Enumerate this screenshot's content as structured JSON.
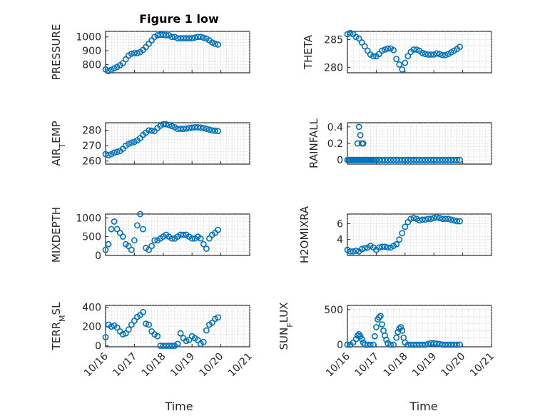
{
  "figure": {
    "title": "Figure 1 low",
    "xlabel": "Time",
    "x_tick_labels": [
      "10/16",
      "10/17",
      "10/18",
      "10/19",
      "10/20",
      "10/21"
    ],
    "marker_color": "#0072bd"
  },
  "chart_data": [
    {
      "type": "scatter",
      "ylabel": "PRESSURE",
      "xlim": [
        0,
        5
      ],
      "ylim": [
        740,
        1040
      ],
      "yticks": [
        800,
        900,
        1000
      ],
      "ytick_labels": [
        "800",
        "900",
        "1000"
      ],
      "grid": true,
      "marker": "circle",
      "x": [
        0.0,
        0.1,
        0.2,
        0.3,
        0.4,
        0.5,
        0.6,
        0.7,
        0.8,
        0.9,
        1.0,
        1.1,
        1.2,
        1.3,
        1.4,
        1.5,
        1.6,
        1.7,
        1.8,
        1.9,
        2.0,
        2.1,
        2.2,
        2.3,
        2.4,
        2.5,
        2.6,
        2.7,
        2.8,
        2.9,
        3.0,
        3.1,
        3.2,
        3.3,
        3.4,
        3.5,
        3.6,
        3.7,
        3.8,
        3.9
      ],
      "y": [
        765,
        752,
        762,
        772,
        782,
        795,
        810,
        838,
        865,
        878,
        882,
        882,
        890,
        906,
        926,
        950,
        975,
        1000,
        1012,
        1015,
        1015,
        1012,
        1012,
        1000,
        1000,
        990,
        990,
        990,
        990,
        990,
        990,
        995,
        1000,
        1000,
        994,
        988,
        975,
        960,
        950,
        945
      ]
    },
    {
      "type": "scatter",
      "ylabel": "THETA",
      "xlim": [
        0,
        5
      ],
      "ylim": [
        279,
        286.5
      ],
      "yticks": [
        280,
        285
      ],
      "ytick_labels": [
        "280",
        "285"
      ],
      "grid": true,
      "marker": "circle",
      "x": [
        0.0,
        0.1,
        0.2,
        0.3,
        0.4,
        0.5,
        0.6,
        0.7,
        0.8,
        0.9,
        1.0,
        1.1,
        1.2,
        1.3,
        1.4,
        1.5,
        1.6,
        1.7,
        1.8,
        1.9,
        2.0,
        2.1,
        2.2,
        2.3,
        2.4,
        2.5,
        2.6,
        2.7,
        2.8,
        2.9,
        3.0,
        3.1,
        3.2,
        3.3,
        3.4,
        3.5,
        3.6,
        3.7,
        3.8,
        3.9
      ],
      "y": [
        286.0,
        286.2,
        286.0,
        285.5,
        285.2,
        284.5,
        283.8,
        283.0,
        282.3,
        282.0,
        282.0,
        282.4,
        283.0,
        283.2,
        283.4,
        283.4,
        283.1,
        281.5,
        280.5,
        279.6,
        280.8,
        282.0,
        282.8,
        283.2,
        283.2,
        283.0,
        282.6,
        282.4,
        282.3,
        282.3,
        282.3,
        282.5,
        282.4,
        282.2,
        282.2,
        282.4,
        282.7,
        283.0,
        283.3,
        283.7
      ]
    },
    {
      "type": "scatter",
      "ylabel": "AIR_TEMP",
      "xlim": [
        0,
        5
      ],
      "ylim": [
        258,
        285
      ],
      "yticks": [
        260,
        270,
        280
      ],
      "ytick_labels": [
        "260",
        "270",
        "280"
      ],
      "grid": true,
      "marker": "circle",
      "x": [
        0.0,
        0.1,
        0.2,
        0.3,
        0.4,
        0.5,
        0.6,
        0.7,
        0.8,
        0.9,
        1.0,
        1.1,
        1.2,
        1.3,
        1.4,
        1.5,
        1.6,
        1.7,
        1.8,
        1.9,
        2.0,
        2.1,
        2.2,
        2.3,
        2.4,
        2.5,
        2.6,
        2.7,
        2.8,
        2.9,
        3.0,
        3.1,
        3.2,
        3.3,
        3.4,
        3.5,
        3.6,
        3.7,
        3.8,
        3.9
      ],
      "y": [
        264.5,
        263.8,
        264.5,
        265.5,
        266.0,
        266.5,
        268.0,
        270.0,
        271.2,
        272.0,
        272.5,
        273.5,
        275.0,
        277.0,
        278.5,
        280.0,
        279.8,
        279.5,
        281.5,
        283.0,
        284.0,
        284.0,
        283.5,
        282.8,
        282.0,
        281.0,
        281.0,
        281.0,
        281.2,
        281.5,
        281.8,
        282.0,
        282.0,
        281.8,
        281.5,
        281.0,
        280.5,
        280.0,
        279.8,
        279.5
      ]
    },
    {
      "type": "scatter",
      "ylabel": "RAINFALL",
      "xlim": [
        0,
        5
      ],
      "ylim": [
        -0.05,
        0.45
      ],
      "yticks": [
        0,
        0.2,
        0.4
      ],
      "ytick_labels": [
        "0",
        "0.2",
        "0.4"
      ],
      "grid": true,
      "marker": "circle",
      "x": [
        0.0,
        0.05,
        0.1,
        0.15,
        0.2,
        0.25,
        0.3,
        0.35,
        0.4,
        0.45,
        0.5,
        0.55,
        0.6,
        0.65,
        0.7,
        0.75,
        0.8,
        0.85,
        0.9,
        0.95,
        1.0,
        1.1,
        1.2,
        1.3,
        1.4,
        1.5,
        1.6,
        1.7,
        1.8,
        1.9,
        2.0,
        2.1,
        2.2,
        2.3,
        2.4,
        2.5,
        2.6,
        2.7,
        2.8,
        2.9,
        3.0,
        3.1,
        3.2,
        3.3,
        3.4,
        3.5,
        3.6,
        3.7,
        3.8,
        3.9,
        0.35,
        0.4,
        0.45,
        0.5,
        0.55
      ],
      "y": [
        0,
        0,
        0,
        0,
        0,
        0,
        0,
        0,
        0,
        0,
        0,
        0,
        0,
        0,
        0,
        0,
        0,
        0,
        0,
        0,
        0,
        0,
        0,
        0,
        0,
        0,
        0,
        0,
        0,
        0,
        0,
        0,
        0,
        0,
        0,
        0,
        0,
        0,
        0,
        0,
        0,
        0,
        0,
        0,
        0,
        0,
        0,
        0,
        0,
        0,
        0.2,
        0.4,
        0.3,
        0.2,
        0.2
      ]
    },
    {
      "type": "scatter",
      "ylabel": "MIXDEPTH",
      "xlim": [
        0,
        5
      ],
      "ylim": [
        0,
        1100
      ],
      "yticks": [
        0,
        500,
        1000
      ],
      "ytick_labels": [
        "0",
        "500",
        "1000"
      ],
      "grid": true,
      "marker": "circle",
      "x": [
        0.0,
        0.1,
        0.2,
        0.3,
        0.4,
        0.5,
        0.6,
        0.7,
        0.8,
        0.9,
        1.0,
        1.1,
        1.2,
        1.3,
        1.4,
        1.5,
        1.6,
        1.7,
        1.8,
        1.9,
        2.0,
        2.1,
        2.2,
        2.3,
        2.4,
        2.5,
        2.6,
        2.7,
        2.8,
        2.9,
        3.0,
        3.1,
        3.2,
        3.3,
        3.4,
        3.5,
        3.6,
        3.7,
        3.8,
        3.9
      ],
      "y": [
        150,
        300,
        700,
        900,
        700,
        600,
        500,
        300,
        250,
        150,
        400,
        800,
        1100,
        700,
        200,
        150,
        250,
        400,
        400,
        450,
        500,
        550,
        500,
        450,
        450,
        500,
        550,
        550,
        550,
        500,
        450,
        450,
        500,
        450,
        300,
        180,
        450,
        550,
        600,
        680
      ]
    },
    {
      "type": "scatter",
      "ylabel": "H2OMIXRA",
      "xlim": [
        0,
        5
      ],
      "ylim": [
        2,
        7.2
      ],
      "yticks": [
        4,
        6
      ],
      "ytick_labels": [
        "4",
        "6"
      ],
      "grid": true,
      "marker": "circle",
      "x": [
        0.0,
        0.1,
        0.2,
        0.3,
        0.4,
        0.5,
        0.6,
        0.7,
        0.8,
        0.9,
        1.0,
        1.1,
        1.2,
        1.3,
        1.4,
        1.5,
        1.6,
        1.7,
        1.8,
        1.9,
        2.0,
        2.1,
        2.2,
        2.3,
        2.4,
        2.5,
        2.6,
        2.7,
        2.8,
        2.9,
        3.0,
        3.1,
        3.2,
        3.3,
        3.4,
        3.5,
        3.6,
        3.7,
        3.8,
        3.9
      ],
      "y": [
        2.7,
        2.5,
        2.5,
        2.6,
        2.5,
        2.8,
        2.9,
        3.0,
        3.2,
        3.0,
        2.7,
        3.0,
        3.1,
        3.1,
        3.0,
        3.0,
        3.2,
        3.4,
        4.0,
        4.8,
        5.6,
        6.2,
        6.6,
        6.7,
        6.6,
        6.4,
        6.5,
        6.5,
        6.6,
        6.6,
        6.7,
        6.8,
        6.7,
        6.6,
        6.6,
        6.6,
        6.5,
        6.4,
        6.3,
        6.3
      ]
    },
    {
      "type": "scatter",
      "ylabel": "TERR_MSL",
      "xlim": [
        0,
        5
      ],
      "ylim": [
        -10,
        420
      ],
      "yticks": [
        0,
        200,
        400
      ],
      "ytick_labels": [
        "0",
        "200",
        "400"
      ],
      "grid": true,
      "marker": "circle",
      "x": [
        0.0,
        0.1,
        0.2,
        0.3,
        0.4,
        0.5,
        0.6,
        0.7,
        0.8,
        0.9,
        1.0,
        1.1,
        1.2,
        1.3,
        1.4,
        1.5,
        1.6,
        1.7,
        1.8,
        1.9,
        2.0,
        2.1,
        2.2,
        2.3,
        2.4,
        2.5,
        2.6,
        2.7,
        2.8,
        2.9,
        3.0,
        3.1,
        3.2,
        3.3,
        3.4,
        3.5,
        3.6,
        3.7,
        3.8,
        3.9
      ],
      "y": [
        90,
        220,
        200,
        210,
        190,
        150,
        120,
        130,
        170,
        220,
        260,
        300,
        320,
        350,
        230,
        220,
        150,
        120,
        100,
        0,
        0,
        0,
        0,
        0,
        0,
        20,
        130,
        80,
        50,
        60,
        100,
        80,
        60,
        20,
        40,
        160,
        220,
        240,
        280,
        295
      ]
    },
    {
      "type": "scatter",
      "ylabel": "SUN_FLUX",
      "xlim": [
        0,
        5
      ],
      "ylim": [
        -30,
        560
      ],
      "yticks": [
        0,
        500
      ],
      "ytick_labels": [
        "0",
        "500"
      ],
      "grid": true,
      "marker": "circle",
      "x": [
        0.0,
        0.1,
        0.2,
        0.3,
        0.35,
        0.4,
        0.45,
        0.5,
        0.55,
        0.6,
        0.7,
        0.8,
        0.9,
        0.95,
        1.0,
        1.05,
        1.1,
        1.15,
        1.2,
        1.25,
        1.3,
        1.35,
        1.4,
        1.5,
        1.6,
        1.7,
        1.75,
        1.8,
        1.85,
        1.9,
        1.95,
        2.0,
        2.1,
        2.2,
        2.3,
        2.4,
        2.5,
        2.6,
        2.7,
        2.8,
        2.9,
        3.0,
        3.1,
        3.2,
        3.3,
        3.4,
        3.5,
        3.6,
        3.7,
        3.8,
        3.9
      ],
      "y": [
        0,
        0,
        30,
        80,
        130,
        150,
        120,
        80,
        30,
        0,
        0,
        0,
        0,
        120,
        250,
        360,
        390,
        410,
        290,
        200,
        130,
        70,
        20,
        0,
        0,
        100,
        180,
        230,
        250,
        200,
        100,
        30,
        0,
        0,
        0,
        0,
        0,
        0,
        0,
        10,
        20,
        20,
        15,
        10,
        0,
        0,
        0,
        0,
        0,
        0,
        0
      ]
    }
  ]
}
